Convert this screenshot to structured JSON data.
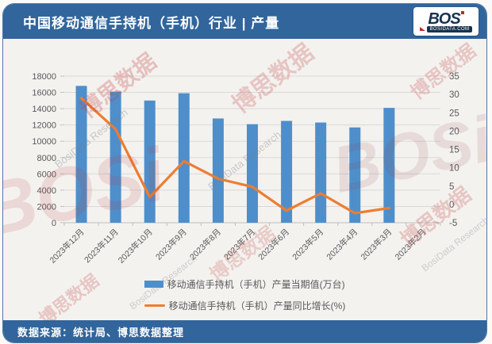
{
  "header": {
    "title": "中国移动通信手持机（手机）行业 | 产量",
    "logo": {
      "text": "BOS",
      "site": "BOSIDATA.COM"
    }
  },
  "footer": {
    "source": "数据来源：统计局、博思数据整理"
  },
  "watermark": {
    "cn": "博思数据",
    "en": "BosiData Research",
    "logo": "BOSi"
  },
  "chart_data": {
    "type": "bar+line",
    "title": "中国移动通信手持机（手机）行业产量",
    "categories": [
      "2023年12月",
      "2023年11月",
      "2023年10月",
      "2023年9月",
      "2023年8月",
      "2023年7月",
      "2023年6月",
      "2023年5月",
      "2023年4月",
      "2023年3月",
      "2023年2月"
    ],
    "series": [
      {
        "name": "移动通信手持机（手机）产量当期值(万台)",
        "type": "bar",
        "axis": "left",
        "color": "#4e8fcb",
        "values": [
          16800,
          16100,
          15000,
          15900,
          12800,
          12100,
          12500,
          12300,
          11700,
          14100,
          null
        ]
      },
      {
        "name": "移动通信手持机（手机）产量同比增长(%)",
        "type": "line",
        "axis": "right",
        "color": "#ed7d31",
        "values": [
          29,
          20.5,
          2,
          11.8,
          7,
          4.8,
          -1.7,
          3,
          -2.4,
          -1,
          null
        ]
      }
    ],
    "left_axis": {
      "min": 0,
      "max": 18000,
      "step": 2000
    },
    "right_axis": {
      "min": -5,
      "max": 35,
      "step": 5
    },
    "grid": true,
    "legend_position": "bottom"
  }
}
